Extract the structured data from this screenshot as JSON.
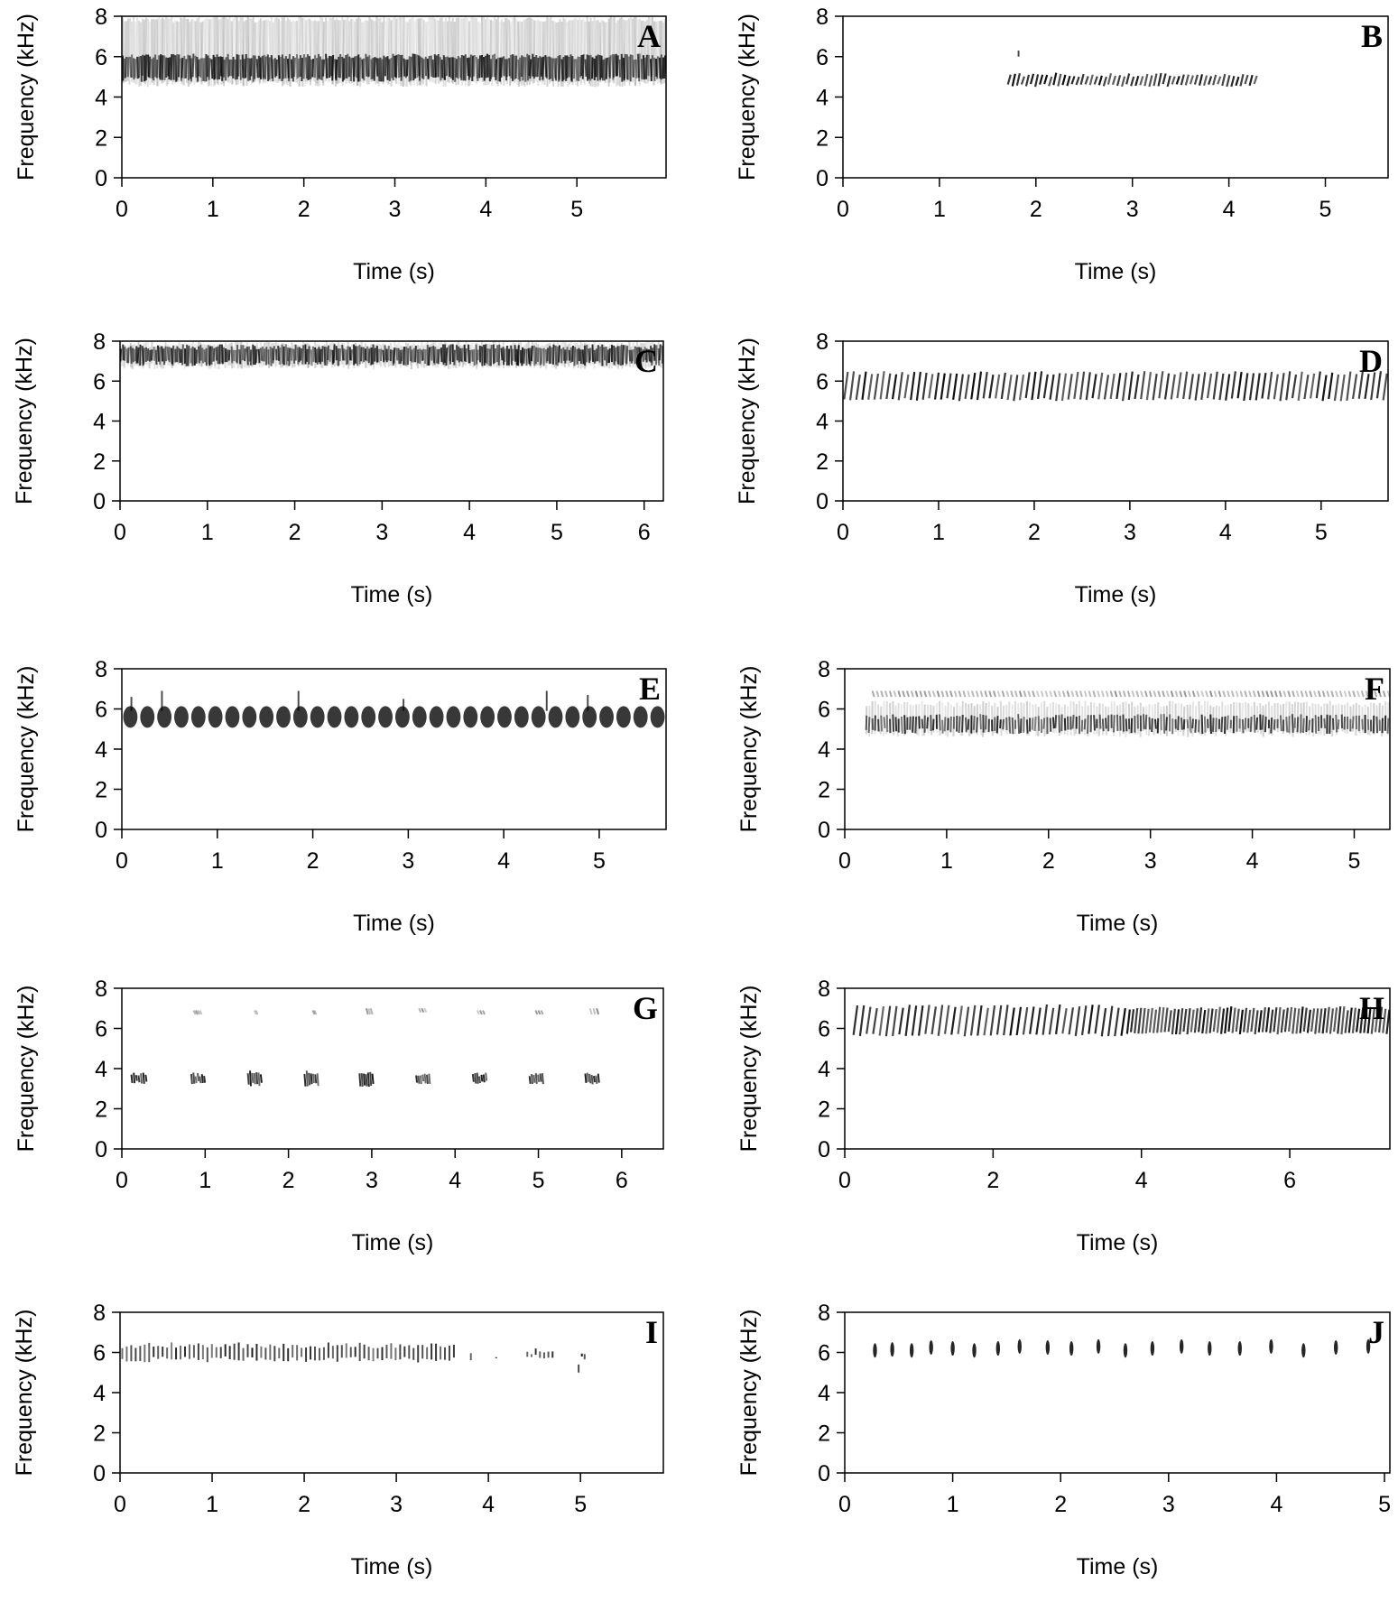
{
  "figure": {
    "xlabel": "Time (s)",
    "ylabel": "Frequency (kHz)"
  },
  "chart_data": [
    {
      "type": "heatmap",
      "panel": "A",
      "xticks": [
        0,
        1,
        2,
        3,
        4,
        5
      ],
      "yticks": [
        0,
        2,
        4,
        6,
        8
      ],
      "xlim": [
        0,
        5.98
      ],
      "ylim": [
        0,
        8
      ],
      "description_free": true,
      "bands": [
        {
          "t_start": 0.0,
          "t_end": 5.98,
          "f_low": 4.5,
          "f_high": 8.0,
          "pattern": "continuous",
          "n_pulses": 300,
          "f_core_low": 4.9,
          "f_core_high": 6.0
        }
      ],
      "spikes": []
    },
    {
      "type": "heatmap",
      "panel": "B",
      "xticks": [
        0,
        1,
        2,
        3,
        4,
        5
      ],
      "yticks": [
        0,
        2,
        4,
        6,
        8
      ],
      "xlim": [
        0,
        5.65
      ],
      "ylim": [
        0,
        8
      ],
      "bands": [
        {
          "t_start": 1.7,
          "t_end": 4.3,
          "f_low": 4.5,
          "f_high": 5.2,
          "pattern": "slanted",
          "n_pulses": 55
        }
      ],
      "spikes": [
        {
          "t": 1.82,
          "f_low": 6.0,
          "f_high": 6.3
        }
      ]
    },
    {
      "type": "heatmap",
      "panel": "C",
      "xticks": [
        0,
        1,
        2,
        3,
        4,
        5,
        6
      ],
      "yticks": [
        0,
        2,
        4,
        6,
        8
      ],
      "xlim": [
        0,
        6.22
      ],
      "ylim": [
        0,
        8
      ],
      "bands": [
        {
          "t_start": 0.0,
          "t_end": 6.22,
          "f_low": 6.6,
          "f_high": 8.0,
          "pattern": "noise",
          "n_pulses": 280,
          "f_core_low": 6.9,
          "f_core_high": 7.7
        }
      ],
      "spikes": []
    },
    {
      "type": "heatmap",
      "panel": "D",
      "xticks": [
        0,
        1,
        2,
        3,
        4,
        5
      ],
      "yticks": [
        0,
        2,
        4,
        6,
        8
      ],
      "xlim": [
        0,
        5.7
      ],
      "ylim": [
        0,
        8
      ],
      "bands": [
        {
          "t_start": 0.0,
          "t_end": 5.7,
          "f_low": 5.0,
          "f_high": 6.5,
          "pattern": "slanted",
          "n_pulses": 90
        }
      ],
      "spikes": []
    },
    {
      "type": "heatmap",
      "panel": "E",
      "xticks": [
        0,
        1,
        2,
        3,
        4,
        5
      ],
      "yticks": [
        0,
        2,
        4,
        6,
        8
      ],
      "xlim": [
        0,
        5.7
      ],
      "ylim": [
        0,
        8
      ],
      "bands": [
        {
          "t_start": 0.0,
          "t_end": 5.7,
          "f_low": 5.0,
          "f_high": 6.2,
          "pattern": "blobs",
          "n_pulses": 32
        }
      ],
      "spikes": [
        {
          "t": 0.1,
          "f_low": 5.9,
          "f_high": 6.6
        },
        {
          "t": 0.42,
          "f_low": 5.9,
          "f_high": 6.9
        },
        {
          "t": 1.85,
          "f_low": 5.9,
          "f_high": 6.9
        },
        {
          "t": 2.95,
          "f_low": 5.9,
          "f_high": 6.5
        },
        {
          "t": 4.45,
          "f_low": 5.9,
          "f_high": 6.9
        },
        {
          "t": 4.88,
          "f_low": 5.9,
          "f_high": 6.7
        }
      ]
    },
    {
      "type": "heatmap",
      "panel": "F",
      "xticks": [
        0,
        1,
        2,
        3,
        4,
        5
      ],
      "yticks": [
        0,
        2,
        4,
        6,
        8
      ],
      "xlim": [
        0,
        5.35
      ],
      "ylim": [
        0,
        8
      ],
      "bands": [
        {
          "t_start": 0.2,
          "t_end": 5.35,
          "f_low": 4.6,
          "f_high": 6.4,
          "pattern": "noise",
          "n_pulses": 180,
          "f_core_low": 4.9,
          "f_core_high": 5.6
        },
        {
          "t_start": 0.25,
          "t_end": 5.35,
          "f_low": 6.6,
          "f_high": 6.9,
          "pattern": "faint",
          "n_pulses": 120
        }
      ],
      "spikes": []
    },
    {
      "type": "heatmap",
      "panel": "G",
      "xticks": [
        0,
        1,
        2,
        3,
        4,
        5,
        6
      ],
      "yticks": [
        0,
        2,
        4,
        6,
        8
      ],
      "xlim": [
        0,
        6.5
      ],
      "ylim": [
        0,
        8
      ],
      "bands": [
        {
          "t_start": 0.1,
          "t_end": 0.3,
          "f_low": 3.2,
          "f_high": 3.8,
          "pattern": "cluster",
          "n_pulses": 7
        },
        {
          "t_start": 0.82,
          "t_end": 1.0,
          "f_low": 3.2,
          "f_high": 3.8,
          "pattern": "cluster",
          "n_pulses": 7
        },
        {
          "t_start": 1.5,
          "t_end": 1.68,
          "f_low": 3.1,
          "f_high": 3.9,
          "pattern": "cluster",
          "n_pulses": 7
        },
        {
          "t_start": 2.18,
          "t_end": 2.36,
          "f_low": 3.1,
          "f_high": 3.9,
          "pattern": "cluster",
          "n_pulses": 7
        },
        {
          "t_start": 2.84,
          "t_end": 3.02,
          "f_low": 3.1,
          "f_high": 3.9,
          "pattern": "cluster",
          "n_pulses": 7
        },
        {
          "t_start": 3.52,
          "t_end": 3.7,
          "f_low": 3.2,
          "f_high": 3.8,
          "pattern": "cluster",
          "n_pulses": 7
        },
        {
          "t_start": 4.2,
          "t_end": 4.38,
          "f_low": 3.2,
          "f_high": 3.8,
          "pattern": "cluster",
          "n_pulses": 7
        },
        {
          "t_start": 4.88,
          "t_end": 5.06,
          "f_low": 3.2,
          "f_high": 3.8,
          "pattern": "cluster",
          "n_pulses": 7
        },
        {
          "t_start": 5.55,
          "t_end": 5.73,
          "f_low": 3.2,
          "f_high": 3.8,
          "pattern": "cluster",
          "n_pulses": 7
        },
        {
          "t_start": 0.85,
          "t_end": 0.95,
          "f_low": 6.7,
          "f_high": 6.9,
          "pattern": "faint",
          "n_pulses": 4
        },
        {
          "t_start": 1.58,
          "t_end": 1.62,
          "f_low": 6.7,
          "f_high": 6.9,
          "pattern": "faint",
          "n_pulses": 2
        },
        {
          "t_start": 2.28,
          "t_end": 2.32,
          "f_low": 6.7,
          "f_high": 6.9,
          "pattern": "faint",
          "n_pulses": 2
        },
        {
          "t_start": 2.92,
          "t_end": 3.0,
          "f_low": 6.7,
          "f_high": 7.0,
          "pattern": "faint",
          "n_pulses": 3
        },
        {
          "t_start": 3.55,
          "t_end": 3.65,
          "f_low": 6.8,
          "f_high": 7.0,
          "pattern": "faint",
          "n_pulses": 3
        },
        {
          "t_start": 4.25,
          "t_end": 4.35,
          "f_low": 6.7,
          "f_high": 6.9,
          "pattern": "faint",
          "n_pulses": 3
        },
        {
          "t_start": 4.95,
          "t_end": 5.05,
          "f_low": 6.7,
          "f_high": 6.9,
          "pattern": "faint",
          "n_pulses": 3
        },
        {
          "t_start": 5.6,
          "t_end": 5.72,
          "f_low": 6.7,
          "f_high": 7.0,
          "pattern": "faint",
          "n_pulses": 3
        }
      ],
      "spikes": []
    },
    {
      "type": "heatmap",
      "panel": "H",
      "xticks": [
        0,
        2,
        4,
        6
      ],
      "yticks": [
        0,
        2,
        4,
        6,
        8
      ],
      "xlim": [
        0,
        7.35
      ],
      "ylim": [
        0,
        8
      ],
      "bands": [
        {
          "t_start": 0.1,
          "t_end": 3.8,
          "f_low": 5.6,
          "f_high": 7.2,
          "pattern": "slanted",
          "n_pulses": 42
        },
        {
          "t_start": 3.8,
          "t_end": 7.35,
          "f_low": 5.7,
          "f_high": 7.1,
          "pattern": "slanted",
          "n_pulses": 70
        }
      ],
      "spikes": []
    },
    {
      "type": "heatmap",
      "panel": "I",
      "xticks": [
        0,
        1,
        2,
        3,
        4,
        5
      ],
      "yticks": [
        0,
        2,
        4,
        6,
        8
      ],
      "xlim": [
        0,
        5.9
      ],
      "ylim": [
        0,
        8
      ],
      "bands": [
        {
          "t_start": 0.0,
          "t_end": 3.65,
          "f_low": 5.5,
          "f_high": 6.5,
          "pattern": "ticks",
          "n_pulses": 75
        },
        {
          "t_start": 3.78,
          "t_end": 3.84,
          "f_low": 5.6,
          "f_high": 6.2,
          "pattern": "ticks",
          "n_pulses": 1
        },
        {
          "t_start": 4.07,
          "t_end": 4.1,
          "f_low": 5.5,
          "f_high": 6.0,
          "pattern": "ticks",
          "n_pulses": 1
        },
        {
          "t_start": 4.4,
          "t_end": 4.72,
          "f_low": 5.6,
          "f_high": 6.2,
          "pattern": "ticks",
          "n_pulses": 7
        },
        {
          "t_start": 5.0,
          "t_end": 5.06,
          "f_low": 5.5,
          "f_high": 6.2,
          "pattern": "ticks",
          "n_pulses": 2
        }
      ],
      "spikes": [
        {
          "t": 4.98,
          "f_low": 5.0,
          "f_high": 5.4
        }
      ]
    },
    {
      "type": "heatmap",
      "panel": "J",
      "xticks": [
        0,
        1,
        2,
        3,
        4,
        5
      ],
      "yticks": [
        0,
        2,
        4,
        6,
        8
      ],
      "xlim": [
        0,
        5.05
      ],
      "ylim": [
        0,
        8
      ],
      "pulses": [
        {
          "t": 0.28,
          "f": 6.1
        },
        {
          "t": 0.44,
          "f": 6.15
        },
        {
          "t": 0.62,
          "f": 6.1
        },
        {
          "t": 0.8,
          "f": 6.25
        },
        {
          "t": 1.0,
          "f": 6.2
        },
        {
          "t": 1.2,
          "f": 6.1
        },
        {
          "t": 1.42,
          "f": 6.2
        },
        {
          "t": 1.62,
          "f": 6.3
        },
        {
          "t": 1.88,
          "f": 6.25
        },
        {
          "t": 2.1,
          "f": 6.2
        },
        {
          "t": 2.35,
          "f": 6.3
        },
        {
          "t": 2.6,
          "f": 6.1
        },
        {
          "t": 2.85,
          "f": 6.2
        },
        {
          "t": 3.12,
          "f": 6.3
        },
        {
          "t": 3.38,
          "f": 6.2
        },
        {
          "t": 3.66,
          "f": 6.2
        },
        {
          "t": 3.95,
          "f": 6.3
        },
        {
          "t": 4.25,
          "f": 6.1
        },
        {
          "t": 4.55,
          "f": 6.25
        },
        {
          "t": 4.85,
          "f": 6.3
        }
      ],
      "bands": [],
      "spikes": []
    }
  ]
}
